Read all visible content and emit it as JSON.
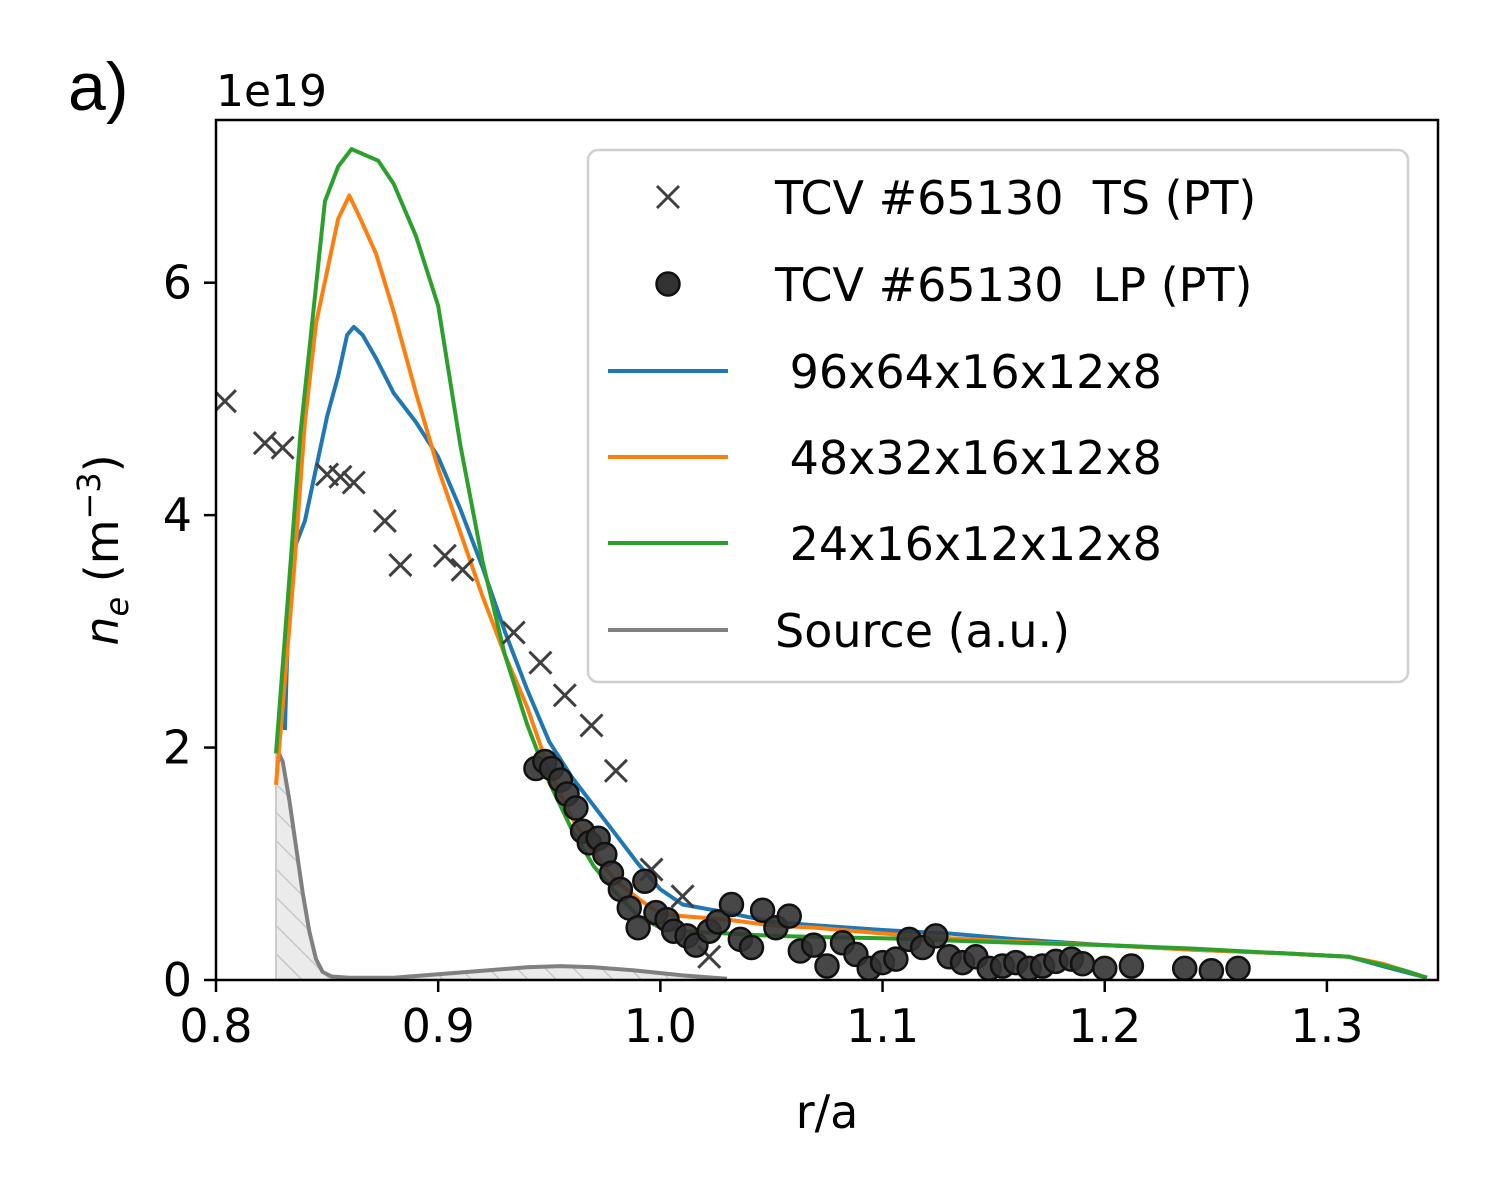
{
  "panel_label": "a)",
  "chart_data": {
    "type": "line",
    "title": "",
    "xlabel": "r/a",
    "ylabel_prefix": "n",
    "ylabel_sub": "e",
    "ylabel_suffix": " (m",
    "ylabel_sup": "−3",
    "ylabel_close": ")",
    "y_offset_label": "1e19",
    "xlim": [
      0.8,
      1.35
    ],
    "ylim": [
      0,
      7.4
    ],
    "y_scale": 1e+19,
    "xticks": [
      0.8,
      0.9,
      1.0,
      1.1,
      1.2,
      1.3
    ],
    "xtick_labels": [
      "0.8",
      "0.9",
      "1.0",
      "1.1",
      "1.2",
      "1.3"
    ],
    "yticks": [
      0,
      2,
      4,
      6
    ],
    "ytick_labels": [
      "0",
      "2",
      "4",
      "6"
    ],
    "grid": false,
    "legend_position": "top-right",
    "series": [
      {
        "name": "TCV #65130  TS (PT)",
        "kind": "scatter-x",
        "color": "#404040",
        "x": [
          0.804,
          0.822,
          0.83,
          0.85,
          0.856,
          0.862,
          0.876,
          0.883,
          0.903,
          0.911,
          0.934,
          0.946,
          0.957,
          0.969,
          0.98,
          0.996,
          1.01,
          1.022
        ],
        "y": [
          4.98,
          4.62,
          4.58,
          4.35,
          4.33,
          4.28,
          3.95,
          3.57,
          3.65,
          3.53,
          2.99,
          2.73,
          2.45,
          2.19,
          1.8,
          0.95,
          0.72,
          0.2
        ]
      },
      {
        "name": "TCV #65130  LP (PT)",
        "kind": "scatter-circle",
        "color": "#333333",
        "x": [
          0.944,
          0.948,
          0.951,
          0.955,
          0.958,
          0.962,
          0.965,
          0.968,
          0.972,
          0.975,
          0.978,
          0.982,
          0.986,
          0.99,
          0.993,
          0.998,
          1.003,
          1.006,
          1.012,
          1.016,
          1.022,
          1.026,
          1.032,
          1.036,
          1.041,
          1.046,
          1.052,
          1.058,
          1.063,
          1.069,
          1.075,
          1.082,
          1.088,
          1.094,
          1.1,
          1.106,
          1.112,
          1.118,
          1.124,
          1.13,
          1.136,
          1.142,
          1.148,
          1.154,
          1.16,
          1.166,
          1.172,
          1.178,
          1.185,
          1.19,
          1.2,
          1.212,
          1.236,
          1.248,
          1.26
        ],
        "y": [
          1.82,
          1.88,
          1.82,
          1.72,
          1.6,
          1.48,
          1.28,
          1.18,
          1.22,
          1.08,
          0.92,
          0.78,
          0.62,
          0.45,
          0.85,
          0.58,
          0.52,
          0.42,
          0.38,
          0.3,
          0.42,
          0.5,
          0.65,
          0.35,
          0.28,
          0.6,
          0.45,
          0.55,
          0.25,
          0.3,
          0.12,
          0.32,
          0.22,
          0.1,
          0.15,
          0.18,
          0.35,
          0.28,
          0.38,
          0.2,
          0.15,
          0.2,
          0.1,
          0.12,
          0.15,
          0.1,
          0.12,
          0.16,
          0.18,
          0.14,
          0.1,
          0.12,
          0.1,
          0.08,
          0.1
        ]
      },
      {
        "name": " 96x64x16x12x8",
        "kind": "line",
        "color": "#1f77b4",
        "x": [
          0.831,
          0.833,
          0.836,
          0.84,
          0.845,
          0.85,
          0.855,
          0.859,
          0.862,
          0.866,
          0.872,
          0.88,
          0.89,
          0.9,
          0.91,
          0.92,
          0.93,
          0.94,
          0.95,
          0.96,
          0.97,
          0.98,
          0.99,
          1.0,
          1.01,
          1.03,
          1.05,
          1.07,
          1.1,
          1.13,
          1.16,
          1.2,
          1.24,
          1.28,
          1.31,
          1.325,
          1.335,
          1.345
        ],
        "y": [
          2.15,
          3.4,
          3.75,
          3.95,
          4.4,
          4.85,
          5.2,
          5.55,
          5.62,
          5.55,
          5.35,
          5.05,
          4.8,
          4.5,
          4.05,
          3.55,
          3.0,
          2.5,
          2.05,
          1.75,
          1.5,
          1.25,
          1.0,
          0.78,
          0.65,
          0.58,
          0.5,
          0.47,
          0.43,
          0.4,
          0.35,
          0.3,
          0.26,
          0.23,
          0.2,
          0.12,
          0.07,
          0.02
        ]
      },
      {
        "name": " 48x32x16x12x8",
        "kind": "line",
        "color": "#ff7f0e",
        "x": [
          0.827,
          0.83,
          0.835,
          0.84,
          0.845,
          0.85,
          0.855,
          0.86,
          0.865,
          0.872,
          0.88,
          0.89,
          0.9,
          0.91,
          0.92,
          0.93,
          0.94,
          0.95,
          0.96,
          0.97,
          0.98,
          0.99,
          1.0,
          1.01,
          1.03,
          1.05,
          1.07,
          1.1,
          1.13,
          1.16,
          1.2,
          1.24,
          1.28,
          1.31,
          1.325,
          1.335,
          1.345
        ],
        "y": [
          1.68,
          2.35,
          3.5,
          4.8,
          5.65,
          6.1,
          6.55,
          6.75,
          6.55,
          6.25,
          5.75,
          5.05,
          4.4,
          3.85,
          3.3,
          2.8,
          2.35,
          1.8,
          1.4,
          1.1,
          0.85,
          0.7,
          0.57,
          0.55,
          0.52,
          0.47,
          0.45,
          0.4,
          0.36,
          0.33,
          0.3,
          0.26,
          0.23,
          0.2,
          0.14,
          0.08,
          0.02
        ]
      },
      {
        "name": " 24x16x12x12x8",
        "kind": "line",
        "color": "#2ca02c",
        "x": [
          0.827,
          0.832,
          0.838,
          0.843,
          0.849,
          0.855,
          0.861,
          0.867,
          0.873,
          0.88,
          0.89,
          0.9,
          0.91,
          0.92,
          0.93,
          0.94,
          0.95,
          0.96,
          0.97,
          0.98,
          0.99,
          1.0,
          1.01,
          1.03,
          1.05,
          1.07,
          1.1,
          1.13,
          1.16,
          1.2,
          1.24,
          1.28,
          1.31,
          1.325,
          1.335,
          1.345
        ],
        "y": [
          1.95,
          3.2,
          4.7,
          5.6,
          6.7,
          7.0,
          7.15,
          7.1,
          7.05,
          6.85,
          6.4,
          5.8,
          4.6,
          3.6,
          2.8,
          2.2,
          1.7,
          1.3,
          0.98,
          0.75,
          0.55,
          0.45,
          0.42,
          0.4,
          0.38,
          0.37,
          0.36,
          0.34,
          0.32,
          0.3,
          0.27,
          0.23,
          0.2,
          0.13,
          0.08,
          0.02
        ]
      },
      {
        "name": "Source (a.u.)",
        "kind": "filled-line",
        "color": "#808080",
        "fill": "#ebebeb",
        "hatch": "#cfcfcf",
        "x": [
          0.827,
          0.83,
          0.833,
          0.836,
          0.839,
          0.842,
          0.845,
          0.848,
          0.852,
          0.86,
          0.88,
          0.9,
          0.92,
          0.94,
          0.955,
          0.97,
          0.99,
          1.01,
          1.03
        ],
        "y": [
          2.0,
          1.88,
          1.55,
          1.15,
          0.75,
          0.42,
          0.18,
          0.07,
          0.03,
          0.02,
          0.02,
          0.05,
          0.08,
          0.11,
          0.12,
          0.11,
          0.08,
          0.04,
          0.01
        ]
      }
    ]
  }
}
